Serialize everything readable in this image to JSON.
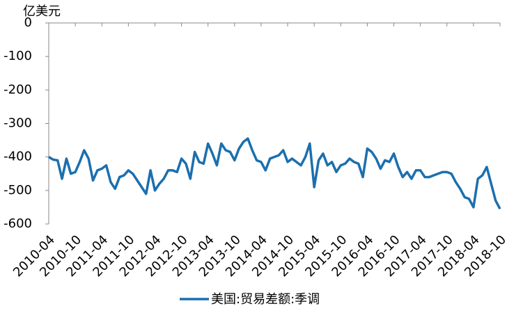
{
  "chart_data": {
    "type": "line",
    "y_axis_label": "亿美元",
    "categories": [
      "2010-04",
      null,
      null,
      null,
      null,
      null,
      "2010-10",
      null,
      null,
      null,
      null,
      null,
      "2011-04",
      null,
      null,
      null,
      null,
      null,
      "2011-10",
      null,
      null,
      null,
      null,
      null,
      "2012-04",
      null,
      null,
      null,
      null,
      null,
      "2012-10",
      null,
      null,
      null,
      null,
      null,
      "2013-04",
      null,
      null,
      null,
      null,
      null,
      "2013-10",
      null,
      null,
      null,
      null,
      null,
      "2014-04",
      null,
      null,
      null,
      null,
      null,
      "2014-10",
      null,
      null,
      null,
      null,
      null,
      "2015-04",
      null,
      null,
      null,
      null,
      null,
      "2015-10",
      null,
      null,
      null,
      null,
      null,
      "2016-04",
      null,
      null,
      null,
      null,
      null,
      "2016-10",
      null,
      null,
      null,
      null,
      null,
      "2017-04",
      null,
      null,
      null,
      null,
      null,
      "2017-10",
      null,
      null,
      null,
      null,
      null,
      "2018-04",
      null,
      null,
      null,
      null,
      null,
      "2018-10"
    ],
    "series": [
      {
        "name": "美国:贸易差额:季调",
        "color": "#1b6fae",
        "values": [
          -400,
          -408,
          -410,
          -465,
          -405,
          -450,
          -445,
          -415,
          -380,
          -405,
          -470,
          -440,
          -435,
          -425,
          -475,
          -495,
          -460,
          -455,
          -440,
          -450,
          -470,
          -490,
          -510,
          -440,
          -500,
          -480,
          -465,
          -440,
          -440,
          -445,
          -405,
          -420,
          -465,
          -385,
          -415,
          -420,
          -360,
          -390,
          -425,
          -360,
          -380,
          -385,
          -410,
          -375,
          -355,
          -345,
          -380,
          -410,
          -415,
          -440,
          -405,
          -400,
          -395,
          -380,
          -415,
          -405,
          -415,
          -425,
          -400,
          -360,
          -490,
          -410,
          -390,
          -425,
          -415,
          -445,
          -425,
          -420,
          -405,
          -415,
          -420,
          -460,
          -375,
          -385,
          -405,
          -435,
          -410,
          -415,
          -390,
          -430,
          -460,
          -445,
          -465,
          -440,
          -440,
          -460,
          -460,
          -455,
          -450,
          -445,
          -445,
          -450,
          -475,
          -495,
          -520,
          -525,
          -550,
          -465,
          -455,
          -430,
          -480,
          -530,
          -555
        ]
      }
    ],
    "ylim": [
      -600,
      0
    ],
    "yticks": [
      0,
      -100,
      -200,
      -300,
      -400,
      -500,
      -600
    ],
    "grid": false,
    "legend": "bottom"
  }
}
